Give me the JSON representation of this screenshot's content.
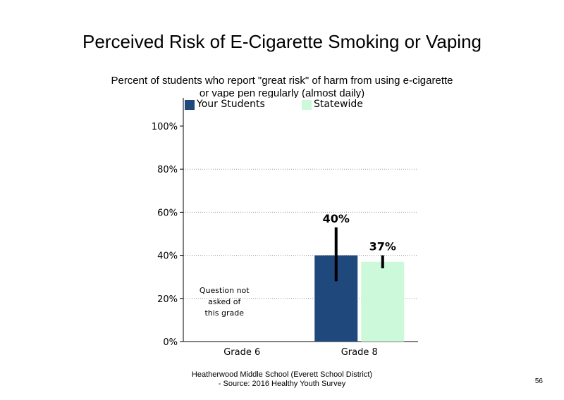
{
  "slide": {
    "page_number": "56",
    "footer_line1": "Heatherwood Middle School (Everett School District)",
    "footer_line2": "- Source: 2016 Healthy Youth Survey"
  },
  "chart_data": {
    "type": "bar",
    "title": "Perceived Risk of E-Cigarette Smoking or Vaping",
    "subtitle": "Percent of students who report \"great risk\" of harm from using e-cigarette or vape pen regularly (almost daily)",
    "categories": [
      "Grade 6",
      "Grade 8"
    ],
    "series": [
      {
        "name": "Your Students",
        "color": "#1f497d",
        "values": [
          null,
          40
        ],
        "error_low": [
          null,
          28
        ],
        "error_high": [
          null,
          53
        ],
        "labels": [
          "",
          "40%"
        ]
      },
      {
        "name": "Statewide",
        "color": "#ccf9d9",
        "values": [
          null,
          37
        ],
        "error_low": [
          null,
          34
        ],
        "error_high": [
          null,
          40
        ],
        "labels": [
          "",
          "37%"
        ]
      }
    ],
    "ylim": [
      0,
      100
    ],
    "yticks": [
      "0%",
      "20%",
      "40%",
      "60%",
      "80%",
      "100%"
    ],
    "gridlines": "dotted",
    "legend_position": "top",
    "annotations": [
      {
        "category": "Grade 6",
        "lines": [
          "Question not",
          "asked of",
          "this grade"
        ]
      }
    ]
  }
}
